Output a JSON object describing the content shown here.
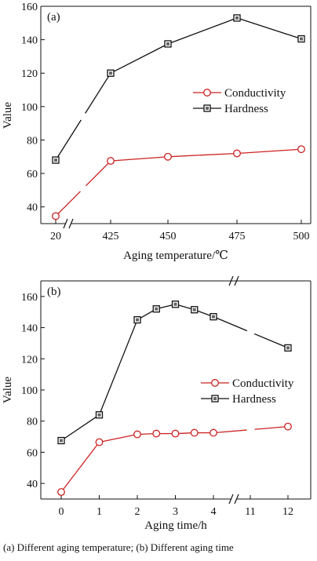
{
  "chart_data": [
    {
      "type": "line",
      "panel_label": "(a)",
      "xlabel": "Aging temperature/℃",
      "ylabel": "Value",
      "categories": [
        "20",
        "425",
        "450",
        "475",
        "500"
      ],
      "axis_break": "between 20 and 425",
      "ylim": [
        30,
        160
      ],
      "yticks": [
        40,
        60,
        80,
        100,
        120,
        140,
        160
      ],
      "legend_position": "center-right",
      "series": [
        {
          "name": "Conductivity",
          "marker": "circle",
          "color": "#cc2222",
          "values": [
            34.5,
            67.5,
            70,
            72,
            74.5
          ]
        },
        {
          "name": "Hardness",
          "marker": "square",
          "color": "#111111",
          "values": [
            68,
            120,
            137.5,
            153,
            140.5
          ]
        }
      ]
    },
    {
      "type": "line",
      "panel_label": "(b)",
      "xlabel": "Aging time/h",
      "ylabel": "Value",
      "x_ticks": [
        "0",
        "1",
        "2",
        "3",
        "4",
        "11",
        "12"
      ],
      "x_tick_values": [
        0,
        1,
        2,
        3,
        4,
        11,
        12
      ],
      "axis_break": "between 4 and 11",
      "ylim": [
        30,
        170
      ],
      "yticks": [
        40,
        60,
        80,
        100,
        120,
        140,
        160
      ],
      "legend_position": "lower-right",
      "series": [
        {
          "name": "Conductivity",
          "marker": "circle",
          "color": "#cc2222",
          "x": [
            0,
            1,
            2,
            2.5,
            3,
            3.5,
            4,
            12
          ],
          "values": [
            34.5,
            66.5,
            71.5,
            72,
            72,
            72.5,
            72.5,
            76.5
          ]
        },
        {
          "name": "Hardness",
          "marker": "square",
          "color": "#111111",
          "x": [
            0,
            1,
            2,
            2.5,
            3,
            3.5,
            4,
            12
          ],
          "values": [
            67.5,
            84,
            145,
            152,
            155,
            151.5,
            147,
            127
          ]
        }
      ]
    }
  ],
  "caption": "(a) Different aging temperature; (b) Different aging time"
}
